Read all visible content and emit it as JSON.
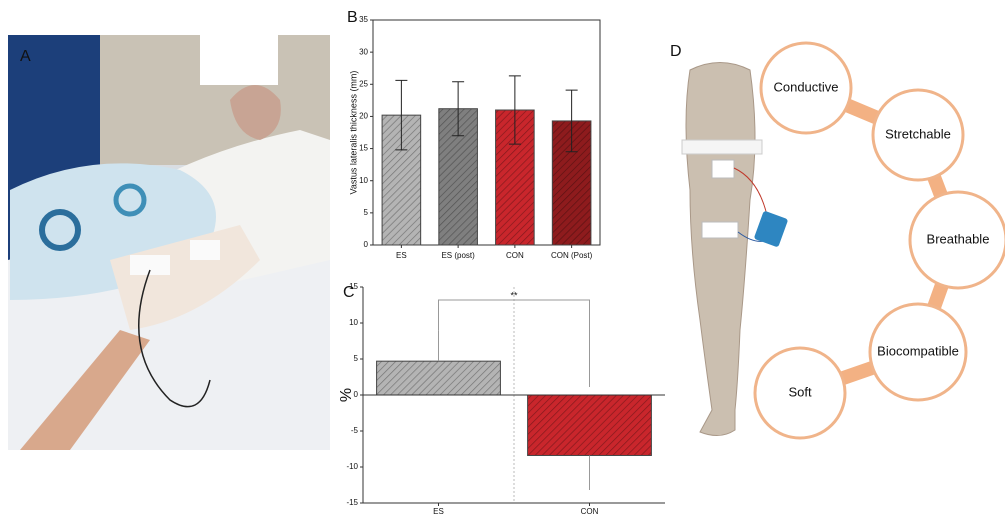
{
  "photo": {
    "label": "A"
  },
  "chart_data": [
    {
      "type": "bar",
      "label": "B",
      "ylabel": "Vastus lateralis thickness (mm)",
      "categories": [
        "ES",
        "ES (post)",
        "CON",
        "CON (Post)"
      ],
      "values": [
        20.2,
        21.2,
        21.0,
        19.3
      ],
      "errors": [
        5.4,
        4.2,
        5.3,
        4.8
      ],
      "colors": [
        "#b4b4b4",
        "#7f7f7f",
        "#c9262c",
        "#8e1b1d"
      ],
      "ylim": [
        0,
        35
      ],
      "yticks": [
        0,
        5,
        10,
        15,
        20,
        25,
        30,
        35
      ]
    },
    {
      "type": "bar",
      "label": "C",
      "ylabel": "%",
      "annotation": "**",
      "categories": [
        "ES",
        "CON"
      ],
      "values": [
        4.7,
        -8.4
      ],
      "errors": [
        4.3,
        4.8
      ],
      "colors": [
        "#b4b4b4",
        "#c9262c"
      ],
      "ylim": [
        -15,
        15
      ],
      "yticks": [
        -15,
        -10,
        -5,
        0,
        5,
        10,
        15
      ]
    }
  ],
  "diagram": {
    "label": "D",
    "nodes": [
      "Conductive",
      "Stretchable",
      "Breathable",
      "Biocompatible",
      "Soft"
    ]
  }
}
